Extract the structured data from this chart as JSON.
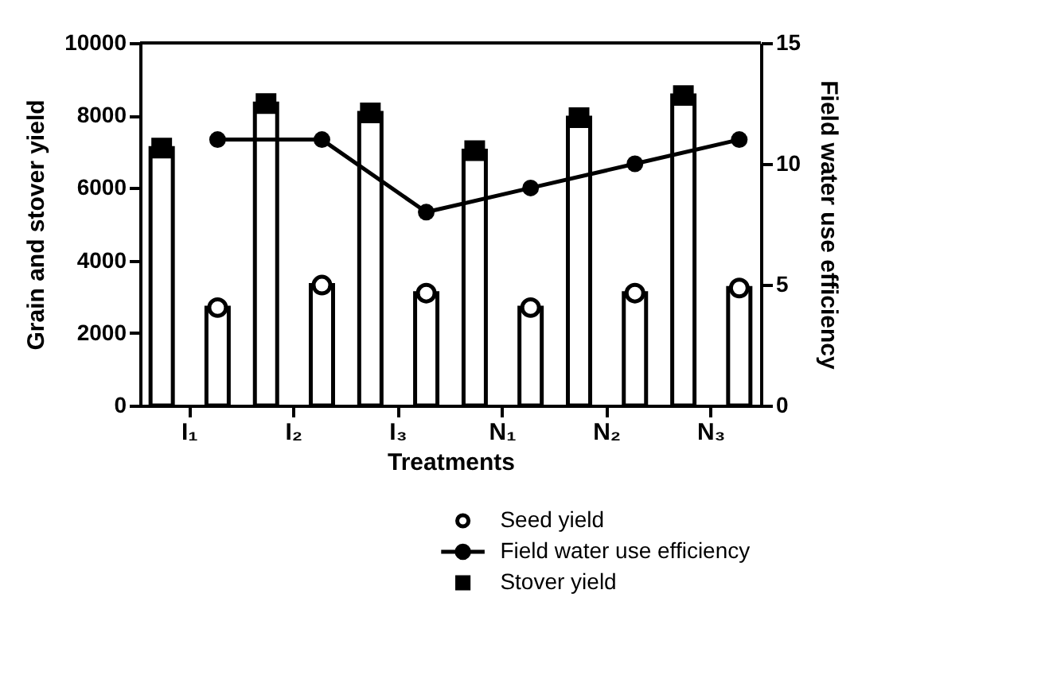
{
  "chart_data": {
    "type": "bar",
    "xlabel": "Treatments",
    "ylabel": "Grain and stover yield",
    "y2label": "Field water use efficiency",
    "categories": [
      "I₁",
      "I₂",
      "I₃",
      "N₁",
      "N₂",
      "N₃"
    ],
    "series": [
      {
        "color": "#000000",
        "values": [
          7100,
          8330,
          8070,
          7030,
          7940,
          8550
        ]
      },
      {
        "color": "#000000",
        "values": [
          2700,
          3320,
          3100,
          2700,
          3100,
          3240
        ]
      },
      {
        "name": "Seed yield",
        "type": "scatter",
        "color": "#000000",
        "marker": "circle",
        "x": [
          "I₁",
          "I₂",
          "I₃",
          "N₁",
          "N₂",
          "N₃"
        ],
        "values": [
          2700,
          3320,
          3100,
          2700,
          3100,
          3240
        ]
      },
      {
        "name": "Field water use efficiency",
        "type": "line",
        "axis": "y2",
        "color": "#000000",
        "marker": "circle",
        "values": [
          11,
          11,
          8,
          9,
          10,
          11
        ]
      },
      {
        "name": "Stover yield",
        "type": "scatter",
        "color": "#000000",
        "marker": "square",
        "x": [
          "I₁",
          "I₂",
          "I₃",
          "N₁",
          "N₂",
          "N₃"
        ],
        "values": [
          7100,
          8330,
          8070,
          7030,
          7940,
          8550
        ]
      }
    ],
    "ylim": [
      0,
      10000
    ],
    "yticks": [
      0,
      2000,
      4000,
      6000,
      8000,
      10000
    ],
    "y2lim": [
      0,
      15
    ],
    "y2ticks": [
      0,
      5,
      10,
      15
    ],
    "grid": false,
    "legend": "bottom right"
  }
}
